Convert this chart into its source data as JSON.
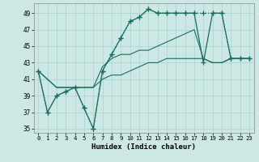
{
  "xlabel": "Humidex (Indice chaleur)",
  "bg_color": "#cce8e4",
  "grid_color": "#afd4cf",
  "line_color": "#1a6b60",
  "xlim": [
    -0.5,
    23.5
  ],
  "ylim": [
    34.5,
    50.2
  ],
  "xticks": [
    0,
    1,
    2,
    3,
    4,
    5,
    6,
    7,
    8,
    9,
    10,
    11,
    12,
    13,
    14,
    15,
    16,
    17,
    18,
    19,
    20,
    21,
    22,
    23
  ],
  "yticks": [
    35,
    37,
    39,
    41,
    43,
    45,
    47,
    49
  ],
  "series": [
    {
      "x": [
        0,
        1,
        2,
        3,
        4,
        5,
        6,
        7,
        8,
        9,
        10,
        11,
        12,
        13,
        14,
        15,
        16,
        17,
        18,
        19,
        20,
        21,
        22,
        23
      ],
      "y": [
        42,
        37,
        39,
        39.5,
        40,
        37.5,
        35,
        42,
        44,
        46,
        48,
        48.5,
        49.5,
        49,
        49,
        49,
        49,
        49,
        49,
        49,
        49,
        43.5,
        43.5,
        43.5
      ],
      "linestyle": ":",
      "marker": "+",
      "lw": 0.9,
      "ms": 4
    },
    {
      "x": [
        0,
        1,
        2,
        3,
        4,
        5,
        6,
        7,
        8,
        9,
        10,
        11,
        12,
        13,
        14,
        15,
        16,
        17,
        18,
        19,
        20,
        21,
        22,
        23
      ],
      "y": [
        42,
        37,
        39,
        39.5,
        40,
        37.5,
        35,
        42,
        44,
        46,
        48,
        48.5,
        49.5,
        49,
        49,
        49,
        49,
        49,
        43,
        49,
        49,
        43.5,
        43.5,
        43.5
      ],
      "linestyle": "-",
      "marker": "+",
      "lw": 0.9,
      "ms": 4
    },
    {
      "x": [
        0,
        2,
        3,
        4,
        5,
        6,
        7,
        8,
        9,
        10,
        11,
        12,
        13,
        14,
        15,
        16,
        17,
        18,
        19,
        20,
        21,
        22,
        23
      ],
      "y": [
        42,
        40,
        40,
        40,
        40,
        40,
        42.5,
        43.5,
        44,
        44,
        44.5,
        44.5,
        45,
        45.5,
        46,
        46.5,
        47,
        43.5,
        43,
        43,
        43.5,
        43.5,
        43.5
      ],
      "linestyle": "-",
      "marker": null,
      "lw": 0.8,
      "ms": 0
    },
    {
      "x": [
        0,
        2,
        3,
        4,
        5,
        6,
        7,
        8,
        9,
        10,
        11,
        12,
        13,
        14,
        15,
        16,
        17,
        18,
        19,
        20,
        21,
        22,
        23
      ],
      "y": [
        42,
        40,
        40,
        40,
        40,
        40,
        41,
        41.5,
        41.5,
        42,
        42.5,
        43,
        43,
        43.5,
        43.5,
        43.5,
        43.5,
        43.5,
        43,
        43,
        43.5,
        43.5,
        43.5
      ],
      "linestyle": "-",
      "marker": null,
      "lw": 0.8,
      "ms": 0
    }
  ]
}
